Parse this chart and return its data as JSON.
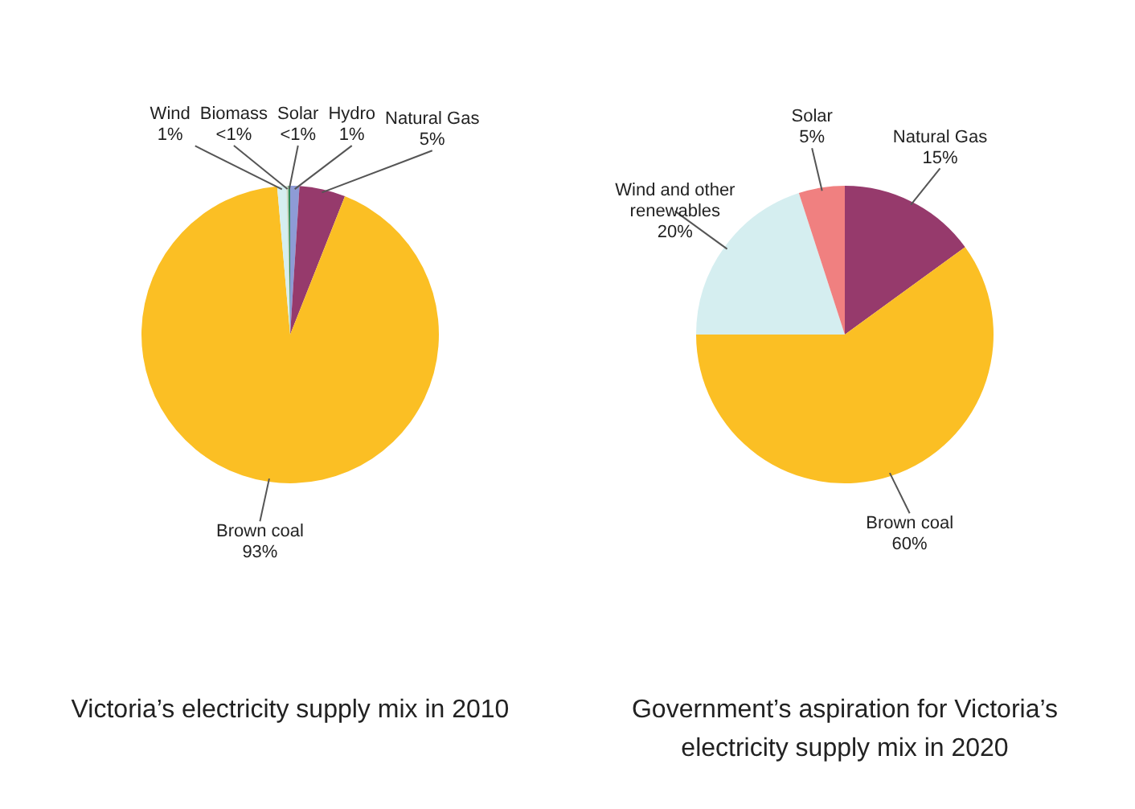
{
  "chart_data": [
    {
      "type": "pie",
      "title": "Victoria’s electricity supply mix in 2010",
      "categories": [
        "Hydro",
        "Natural Gas",
        "Brown coal",
        "Wind",
        "Biomass",
        "Solar"
      ],
      "values": [
        1,
        5,
        92.6,
        1,
        0.2,
        0.2
      ],
      "value_labels": [
        "1%",
        "5%",
        "93%",
        "1%",
        "<1%",
        "<1%"
      ],
      "colors": [
        "#8e9bd6",
        "#963a6c",
        "#fbbf24",
        "#d5eef0",
        "#c9d3c0",
        "#2e8b57"
      ],
      "legend": false
    },
    {
      "type": "pie",
      "title": "Government’s aspiration for Victoria’s electricity supply mix in 2020",
      "categories": [
        "Natural Gas",
        "Brown coal",
        "Wind and other renewables",
        "Solar"
      ],
      "values": [
        15,
        60,
        20,
        5
      ],
      "value_labels": [
        "15%",
        "60%",
        "20%",
        "5%"
      ],
      "colors": [
        "#963a6c",
        "#fbbf24",
        "#d5eef0",
        "#f08080"
      ],
      "legend": false
    }
  ]
}
